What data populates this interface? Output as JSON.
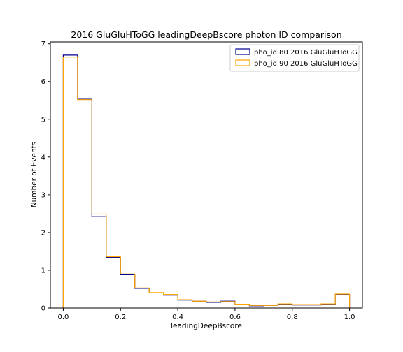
{
  "chart_data": {
    "type": "histogram-step",
    "title": "2016 GluGluHToGG leadingDeepBscore photon ID comparison",
    "xlabel": "leadingDeepBscore",
    "ylabel": "Number of Events",
    "xlim": [
      -0.045,
      1.045
    ],
    "ylim": [
      0,
      7.05
    ],
    "xticks": [
      0.0,
      0.2,
      0.4,
      0.6,
      0.8,
      1.0
    ],
    "xtick_labels": [
      "0.0",
      "0.2",
      "0.4",
      "0.6",
      "0.8",
      "1.0"
    ],
    "yticks": [
      0,
      1,
      2,
      3,
      4,
      5,
      6,
      7
    ],
    "ytick_labels": [
      "0",
      "1",
      "2",
      "3",
      "4",
      "5",
      "6",
      "7"
    ],
    "grid": false,
    "legend_position": "top-right",
    "bin_edges": [
      0.0,
      0.05,
      0.1,
      0.15,
      0.2,
      0.25,
      0.3,
      0.35,
      0.4,
      0.45,
      0.5,
      0.55,
      0.6,
      0.65,
      0.7,
      0.75,
      0.8,
      0.85,
      0.9,
      0.95,
      1.0
    ],
    "series": [
      {
        "name": "pho_id 80 2016 GluGluHToGG",
        "color": "#00008b",
        "values": [
          6.7,
          5.53,
          2.42,
          1.34,
          0.88,
          0.52,
          0.4,
          0.34,
          0.21,
          0.18,
          0.15,
          0.18,
          0.09,
          0.06,
          0.07,
          0.1,
          0.08,
          0.08,
          0.1,
          0.35
        ]
      },
      {
        "name": "pho_id 90 2016 GluGluHToGG",
        "color": "#ffa500",
        "values": [
          6.65,
          5.52,
          2.49,
          1.36,
          0.9,
          0.53,
          0.41,
          0.36,
          0.22,
          0.18,
          0.16,
          0.17,
          0.1,
          0.07,
          0.07,
          0.11,
          0.09,
          0.09,
          0.11,
          0.37
        ]
      }
    ]
  }
}
